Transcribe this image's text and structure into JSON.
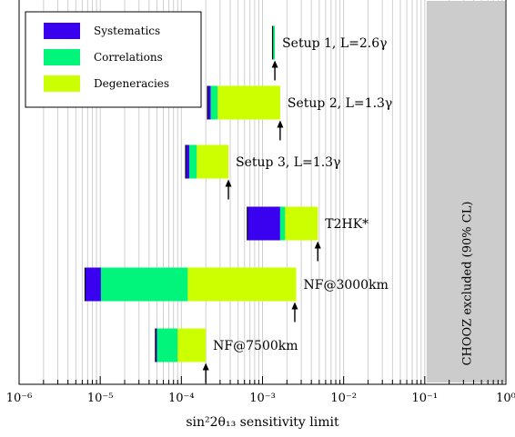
{
  "chart_data": {
    "type": "bar",
    "orientation": "horizontal",
    "stacked": true,
    "x_scale": "log",
    "xlim": [
      1e-06,
      1
    ],
    "xlabel": "sin²2θ₁₃ sensitivity limit",
    "x_tick_labels": [
      "10⁻⁶",
      "10⁻⁵",
      "10⁻⁴",
      "10⁻³",
      "10⁻²",
      "10⁻¹",
      "10⁰"
    ],
    "grid": true,
    "legend_position": "top-left",
    "series": [
      {
        "name": "Systematics",
        "color": "#3a00f0"
      },
      {
        "name": "Correlations",
        "color": "#00f57a"
      },
      {
        "name": "Degeneracies",
        "color": "#ccff00"
      }
    ],
    "categories": [
      "Setup 1, L=2.6γ",
      "Setup 2, L=1.3γ",
      "Setup 3, L=1.3γ",
      "T2HK*",
      "NF@3000km",
      "NF@7500km"
    ],
    "bars": [
      {
        "label": "Setup 1, L=2.6γ",
        "statistics": 0.00133,
        "systematics": 0.00135,
        "correlations": 0.00142,
        "degeneracies": 0.00142,
        "arrow": 0.00142
      },
      {
        "label": "Setup 2, L=1.3γ",
        "statistics": 0.00021,
        "systematics": 0.00023,
        "correlations": 0.00028,
        "degeneracies": 0.00165,
        "arrow": 0.00165
      },
      {
        "label": "Setup 3, L=1.3γ",
        "statistics": 0.000113,
        "systematics": 0.000125,
        "correlations": 0.000155,
        "degeneracies": 0.00038,
        "arrow": 0.00038
      },
      {
        "label": "T2HK*",
        "statistics": 0.00065,
        "systematics": 0.00165,
        "correlations": 0.0019,
        "degeneracies": 0.0048,
        "arrow": 0.0048
      },
      {
        "label": "NF@3000km",
        "statistics": 6.5e-06,
        "systematics": 1.02e-05,
        "correlations": 0.00012,
        "degeneracies": 0.0026,
        "arrow": 0.0025
      },
      {
        "label": "NF@7500km",
        "statistics": 4.8e-05,
        "systematics": 5e-05,
        "correlations": 9e-05,
        "degeneracies": 0.0002,
        "arrow": 0.0002
      }
    ],
    "excluded_region": {
      "from": 0.1,
      "to": 1,
      "label": "CHOOZ excluded (90% CL)",
      "color": "#cccccc"
    }
  }
}
